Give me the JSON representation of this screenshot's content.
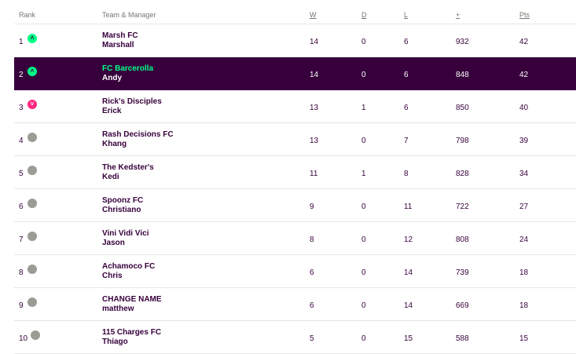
{
  "header": {
    "rank": "Rank",
    "team_manager": "Team & Manager",
    "w": "W",
    "d": "D",
    "l": "L",
    "plus": "+",
    "pts": "Pts"
  },
  "rows": [
    {
      "rank": "1",
      "movement": "up",
      "team": "Marsh FC",
      "manager": "Marshall",
      "w": "14",
      "d": "0",
      "l": "6",
      "plus": "932",
      "pts": "42"
    },
    {
      "rank": "2",
      "movement": "up",
      "team": "FC Barcerolla",
      "manager": "Andy",
      "w": "14",
      "d": "0",
      "l": "6",
      "plus": "848",
      "pts": "42"
    },
    {
      "rank": "3",
      "movement": "down",
      "team": "Rick's Disciples",
      "manager": "Erick",
      "w": "13",
      "d": "1",
      "l": "6",
      "plus": "850",
      "pts": "40"
    },
    {
      "rank": "4",
      "movement": "same",
      "team": "Rash Decisions FC",
      "manager": "Khang",
      "w": "13",
      "d": "0",
      "l": "7",
      "plus": "798",
      "pts": "39"
    },
    {
      "rank": "5",
      "movement": "same",
      "team": "The Kedster's",
      "manager": "Kedi",
      "w": "11",
      "d": "1",
      "l": "8",
      "plus": "828",
      "pts": "34"
    },
    {
      "rank": "6",
      "movement": "same",
      "team": "Spoonz FC",
      "manager": "Christiano",
      "w": "9",
      "d": "0",
      "l": "11",
      "plus": "722",
      "pts": "27"
    },
    {
      "rank": "7",
      "movement": "same",
      "team": "Vini Vidi Vici",
      "manager": "Jason",
      "w": "8",
      "d": "0",
      "l": "12",
      "plus": "808",
      "pts": "24"
    },
    {
      "rank": "8",
      "movement": "same",
      "team": "Achamoco FC",
      "manager": "Chris",
      "w": "6",
      "d": "0",
      "l": "14",
      "plus": "739",
      "pts": "18"
    },
    {
      "rank": "9",
      "movement": "same",
      "team": "CHANGE NAME",
      "manager": "matthew",
      "w": "6",
      "d": "0",
      "l": "14",
      "plus": "669",
      "pts": "18"
    },
    {
      "rank": "10",
      "movement": "same",
      "team": "115 Charges FC",
      "manager": "Thiago",
      "w": "5",
      "d": "0",
      "l": "15",
      "plus": "588",
      "pts": "15"
    }
  ],
  "highlight_rank": "2",
  "colors": {
    "primary": "#37003c",
    "up": "#00ff87",
    "down": "#ff2882",
    "same": "#9c9c94"
  },
  "icons": {
    "up": "chevron-up-icon",
    "down": "chevron-down-icon",
    "same": "no-change-icon"
  }
}
